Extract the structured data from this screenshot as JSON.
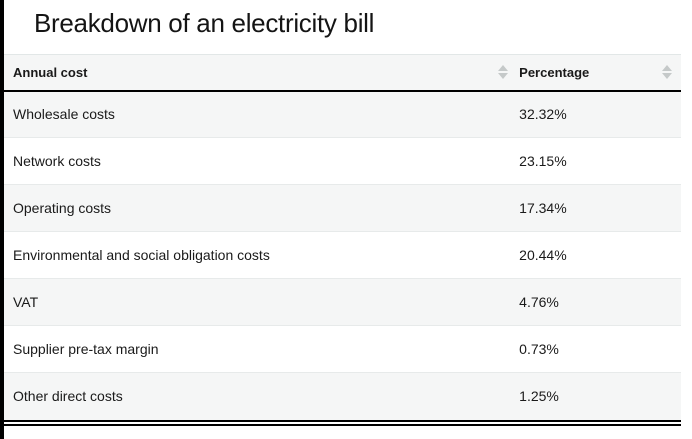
{
  "title": "Breakdown of an electricity bill",
  "table": {
    "columns": [
      {
        "label": "Annual cost"
      },
      {
        "label": "Percentage"
      }
    ],
    "rows": [
      [
        "Wholesale costs",
        "32.32%"
      ],
      [
        "Network costs",
        "23.15%"
      ],
      [
        "Operating costs",
        "17.34%"
      ],
      [
        "Environmental and social obligation costs",
        "20.44%"
      ],
      [
        "VAT",
        "4.76%"
      ],
      [
        "Supplier pre-tax margin",
        "0.73%"
      ],
      [
        "Other direct costs",
        "1.25%"
      ]
    ]
  },
  "icons": {
    "sort": "sort-up-down-arrows"
  },
  "colors": {
    "accent_bar": "#000000",
    "stripe": "#f5f6f6",
    "sort_icon": "#c5c9c9",
    "header_rule": "#000000"
  },
  "chart_data": {
    "type": "table",
    "title": "Breakdown of an electricity bill",
    "columns": [
      "Annual cost",
      "Percentage"
    ],
    "categories": [
      "Wholesale costs",
      "Network costs",
      "Operating costs",
      "Environmental and social obligation costs",
      "VAT",
      "Supplier pre-tax margin",
      "Other direct costs"
    ],
    "values": [
      32.32,
      23.15,
      17.34,
      20.44,
      4.76,
      0.73,
      1.25
    ],
    "value_unit": "%",
    "layout": {
      "sortable_columns": true,
      "striped_rows": true,
      "legend": "none"
    }
  }
}
